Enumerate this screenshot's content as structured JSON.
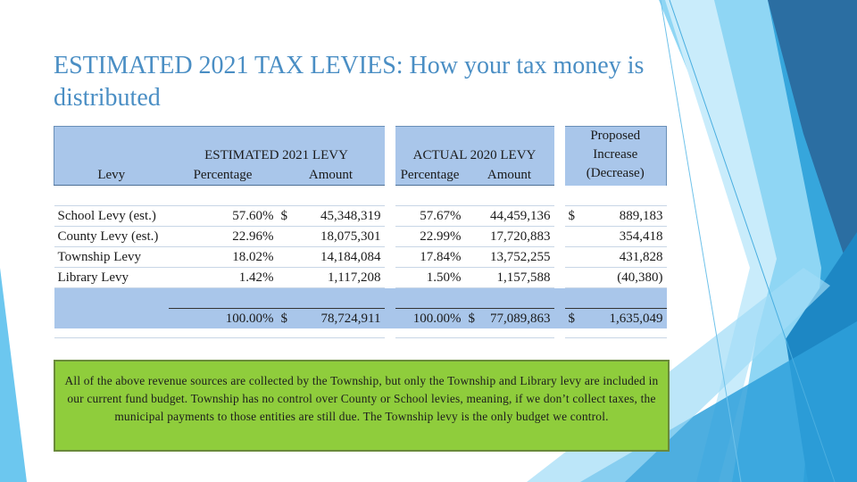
{
  "title": "ESTIMATED 2021 TAX LEVIES: How your tax money is distributed",
  "table": {
    "group_headers": {
      "estimated": "ESTIMATED 2021 LEVY",
      "actual": "ACTUAL 2020 LEVY",
      "proposed_line1": "Proposed",
      "proposed_line2": "Increase",
      "proposed_line3": "(Decrease)"
    },
    "column_headers": {
      "levy": "Levy",
      "est_percentage": "Percentage",
      "est_amount": "Amount",
      "act_percentage": "Percentage",
      "act_amount": "Amount"
    },
    "rows": [
      {
        "levy": "School Levy (est.)",
        "est_pct": "57.60%",
        "est_dollar": "$",
        "est_amount": "45,348,319",
        "act_pct": "57.67%",
        "act_dollar": "",
        "act_amount": "44,459,136",
        "prop_dollar": "$",
        "prop_amount": "889,183"
      },
      {
        "levy": "County Levy (est.)",
        "est_pct": "22.96%",
        "est_dollar": "",
        "est_amount": "18,075,301",
        "act_pct": "22.99%",
        "act_dollar": "",
        "act_amount": "17,720,883",
        "prop_dollar": "",
        "prop_amount": "354,418"
      },
      {
        "levy": "Township Levy",
        "est_pct": "18.02%",
        "est_dollar": "",
        "est_amount": "14,184,084",
        "act_pct": "17.84%",
        "act_dollar": "",
        "act_amount": "13,752,255",
        "prop_dollar": "",
        "prop_amount": "431,828"
      },
      {
        "levy": "Library Levy",
        "est_pct": "1.42%",
        "est_dollar": "",
        "est_amount": "1,117,208",
        "act_pct": "1.50%",
        "act_dollar": "",
        "act_amount": "1,157,588",
        "prop_dollar": "",
        "prop_amount": "(40,380)"
      }
    ],
    "total": {
      "est_pct": "100.00%",
      "est_dollar": "$",
      "est_amount": "78,724,911",
      "act_pct": "100.00%",
      "act_dollar": "$",
      "act_amount": "77,089,863",
      "prop_dollar": "$",
      "prop_amount": "1,635,049"
    }
  },
  "note": {
    "text": "All of the above revenue sources are collected by the Township, but only the Township and Library levy are included in our current fund budget. Township has no control over County or School levies, meaning, if we don’t collect taxes, the municipal payments to those entities are still due. The Township levy is the only budget we control."
  },
  "colors": {
    "title": "#4a8ec4",
    "table_header_blue": "#a9c6ea",
    "note_green": "#8fcd3c",
    "decor_blue_dark": "#2a6fa3",
    "decor_blue_mid": "#2e9bd6",
    "decor_blue_light": "#5bc4ee"
  }
}
